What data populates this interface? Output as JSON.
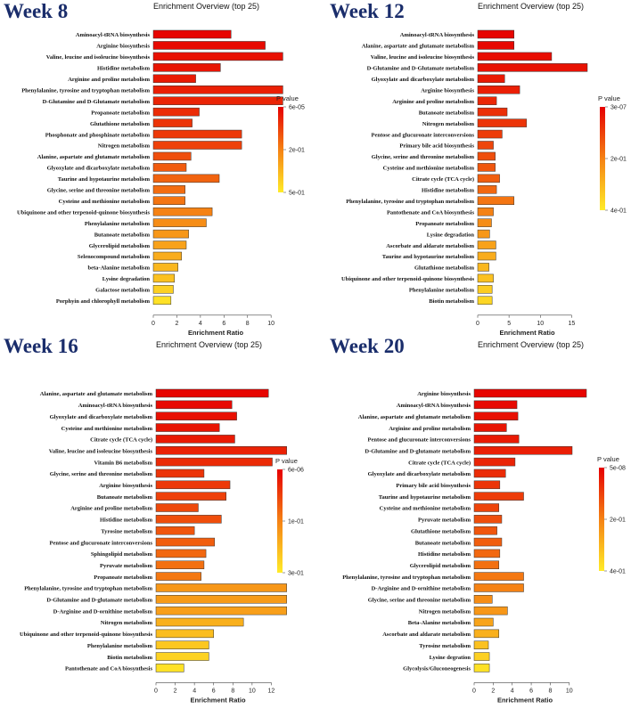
{
  "chart_data": [
    {
      "type": "bar",
      "week_label": "Week 8",
      "title": "Enrichment Overview (top 25)",
      "xlabel": "Enrichment Ratio",
      "legend_title": "P value",
      "legend_ticks": [
        "6e-05",
        "2e-01",
        "5e-01"
      ],
      "xlim": [
        0,
        11.5
      ],
      "xticks": [
        0,
        2,
        4,
        6,
        8,
        10
      ],
      "categories": [
        "Aminoacyl-tRNA biosynthesis",
        "Arginine biosynthesis",
        "Valine, leucine and isoleucine biosynthesis",
        "Histidine metabolism",
        "Arginine and proline metabolism",
        "Phenylalanine, tyrosine and tryptophan metabolism",
        "D-Glutamine and D-Glutamate metabolism",
        "Propanoate metabolism",
        "Glutathione metabolism",
        "Phosphonate and phosphinate metabolism",
        "Nitrogen metabolism",
        "Alanine, aspartate and glutamate metabolism",
        "Glyoxylate and dicarboxylate metabolism",
        "Taurine and hypotaurine metabolism",
        "Glycine, serine and threonine metabolism",
        "Cysteine and methionine metabolism",
        "Ubiquinone and other terpenoid-quinone biosynthesis",
        "Phenylalanine metabolism",
        "Butanoate metabolism",
        "Glycerolipid metabolism",
        "Selenocompound metabolism",
        "beta-Alanine metabolism",
        "Lysine degradation",
        "Galactose metabolism",
        "Porphyin and chlorophyll metabolism"
      ],
      "values": [
        6.6,
        9.5,
        11.0,
        5.7,
        3.6,
        11.0,
        11.0,
        3.9,
        3.3,
        7.5,
        7.5,
        3.2,
        2.8,
        5.6,
        2.7,
        2.7,
        5.0,
        4.5,
        3.0,
        2.8,
        2.4,
        2.1,
        1.8,
        1.7,
        1.5
      ],
      "color_level": [
        0.02,
        0.04,
        0.06,
        0.08,
        0.1,
        0.12,
        0.14,
        0.17,
        0.2,
        0.22,
        0.25,
        0.3,
        0.35,
        0.38,
        0.42,
        0.45,
        0.5,
        0.55,
        0.6,
        0.65,
        0.7,
        0.75,
        0.8,
        0.87,
        0.95
      ]
    },
    {
      "type": "bar",
      "week_label": "Week 12",
      "title": "Enrichment Overview (top 25)",
      "xlabel": "Enrichment Ratio",
      "legend_title": "P value",
      "legend_ticks": [
        "3e-07",
        "2e-01",
        "4e-01"
      ],
      "xlim": [
        0,
        17.5
      ],
      "xticks": [
        0,
        5,
        10,
        15
      ],
      "categories": [
        "Aminoacyl-tRNA biosynthesis",
        "Alanine, aspartate and glutamate metabolism",
        "Valine, leucine and isoleucine biosynthesis",
        "D-Glutamine and D-Glutamate metabolism",
        "Glyoxylate and dicarboxylate metabolism",
        "Arginine biosynthesis",
        "Arginine and proline metabolism",
        "Butanoate metabolism",
        "Nitrogen metabolism",
        "Pentose and glucuronate interconversions",
        "Primary bile acid biosynthesis",
        "Glycine, serine and threonine metabolism",
        "Cysteine and methionine metabolism",
        "Citrate cycle (TCA cycle)",
        "Histidine metabolism",
        "Phenylalanine, tyrosine and tryptophan metabolism",
        "Pantothenate and CoA biosynthesis",
        "Propanoate metabolism",
        "Lysine degradation",
        "Ascorbate and aldarate metabolism",
        "Taurine and hypotaurine metabolism",
        "Glutathione metabolism",
        "Ubiquinone and other terpenoid-quinone biosynthesis",
        "Phenylalanine metabolism",
        "Biotin metabolism"
      ],
      "values": [
        5.8,
        5.8,
        11.8,
        17.5,
        4.3,
        6.7,
        3.0,
        4.7,
        7.8,
        3.9,
        2.5,
        2.8,
        2.8,
        3.5,
        3.0,
        5.8,
        2.5,
        2.2,
        1.9,
        2.9,
        2.9,
        1.8,
        2.5,
        2.3,
        2.3
      ],
      "color_level": [
        0.02,
        0.03,
        0.05,
        0.07,
        0.1,
        0.12,
        0.15,
        0.18,
        0.2,
        0.23,
        0.27,
        0.3,
        0.33,
        0.36,
        0.4,
        0.45,
        0.5,
        0.55,
        0.6,
        0.65,
        0.7,
        0.75,
        0.8,
        0.85,
        0.9
      ]
    },
    {
      "type": "bar",
      "week_label": "Week 16",
      "title": "Enrichment Overview (top 25)",
      "xlabel": "Enrichment Ratio",
      "legend_title": "P value",
      "legend_ticks": [
        "6e-06",
        "1e-01",
        "3e-01"
      ],
      "xlim": [
        0,
        14
      ],
      "xticks": [
        0,
        2,
        4,
        6,
        8,
        10,
        12
      ],
      "categories": [
        "Alanine, aspartate and glutamate metabolism",
        "Aminoacyl-tRNA biosynthesis",
        "Glyoxylate and dicarboxylate metabolism",
        "Cysteine and methionine metabolism",
        "Citrate cycle (TCA cycle)",
        "Valine, leucine and isoleucine biosynthesis",
        "Vitamin B6 metabolism",
        "Glycine, serine and threonine metabolism",
        "Arginine biosynthesis",
        "Butanoate metabolism",
        "Arginine and proline metabolism",
        "Histidine metabolism",
        "Tyrosine metabolism",
        "Pentose and glucuronate interconversions",
        "Sphingolipid metabolism",
        "Pyruvate metabolism",
        "Propanoate metabolism",
        "Phenylalanine, tyrosine and tryptophan metabolism",
        "D-Glutamine and D-glutamate metabolism",
        "D-Arginine and D-ornithine metabolism",
        "Nitrogen metabolism",
        "Ubiquinone and other terpenoid-quinone biosynthesis",
        "Phenylalanine metabolism",
        "Biotin metabolism",
        "Pantothenate and CoA biosynthesis"
      ],
      "values": [
        11.7,
        7.9,
        8.4,
        6.6,
        8.2,
        13.6,
        12.1,
        5.0,
        7.7,
        7.3,
        4.4,
        6.8,
        4.0,
        6.1,
        5.2,
        5.0,
        4.7,
        13.6,
        13.6,
        13.6,
        9.1,
        6.0,
        5.5,
        5.5,
        2.9
      ],
      "color_level": [
        0.02,
        0.04,
        0.06,
        0.08,
        0.1,
        0.13,
        0.16,
        0.2,
        0.22,
        0.25,
        0.28,
        0.3,
        0.33,
        0.36,
        0.4,
        0.43,
        0.46,
        0.6,
        0.62,
        0.64,
        0.72,
        0.78,
        0.83,
        0.88,
        0.95
      ]
    },
    {
      "type": "bar",
      "week_label": "Week 20",
      "title": "Enrichment Overview (top 25)",
      "xlabel": "Enrichment Ratio",
      "legend_title": "P value",
      "legend_ticks": [
        "5e-08",
        "2e-01",
        "4e-01"
      ],
      "xlim": [
        0,
        11.8
      ],
      "xticks": [
        0,
        2,
        4,
        6,
        8,
        10
      ],
      "categories": [
        "Arginine biosynthesis",
        "Aminoacyl-tRNA biosynthesis",
        "Alanine, aspartate and glutamate metabolism",
        "Arginine and proline metabolism",
        "Pentose and glucuronate interconversions",
        "D-Glutamine and D-glutamate metabolism",
        "Citrate cycle (TCA cycle)",
        "Glyoxylate and dicarboxylate metabolism",
        "Primary bile acid biosynthesis",
        "Taurine and hypotaurine metabolism",
        "Cysteine and methionine metabolism",
        "Pyruvate metabolism",
        "Glutathione metabolism",
        "Butanoate metabolism",
        "Histidine metabolism",
        "Glycerolipid metabolism",
        "Phenylalanine, tyrosine and tryptophan metabolism",
        "D-Arginine and D-ornithine metabolism",
        "Glycine, serine and threonine metabolism",
        "Nitrogen metabolism",
        "Beta-Alanine metabolism",
        "Ascorbate and aldarate metabolism",
        "Tyrosine metabolism",
        "Lysine degration",
        "Glycolysis/Gluconeogenesis"
      ],
      "values": [
        11.8,
        4.5,
        4.6,
        3.4,
        4.7,
        10.3,
        4.3,
        3.3,
        2.7,
        5.2,
        2.6,
        2.9,
        2.4,
        2.9,
        2.7,
        2.6,
        5.2,
        5.2,
        1.9,
        3.5,
        2.0,
        2.6,
        1.5,
        1.6,
        1.6
      ],
      "color_level": [
        0.02,
        0.04,
        0.06,
        0.08,
        0.1,
        0.12,
        0.14,
        0.17,
        0.2,
        0.23,
        0.26,
        0.3,
        0.33,
        0.36,
        0.4,
        0.43,
        0.46,
        0.5,
        0.55,
        0.6,
        0.66,
        0.72,
        0.8,
        0.87,
        0.95
      ]
    }
  ]
}
